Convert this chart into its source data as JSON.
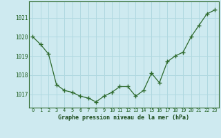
{
  "x": [
    0,
    1,
    2,
    3,
    4,
    5,
    6,
    7,
    8,
    9,
    10,
    11,
    12,
    13,
    14,
    15,
    16,
    17,
    18,
    19,
    20,
    21,
    22,
    23
  ],
  "y": [
    1020.0,
    1019.6,
    1019.1,
    1017.5,
    1017.2,
    1017.1,
    1016.9,
    1016.8,
    1016.6,
    1016.9,
    1017.1,
    1017.4,
    1017.4,
    1016.9,
    1017.2,
    1018.1,
    1017.6,
    1018.7,
    1019.0,
    1019.2,
    1020.0,
    1020.6,
    1021.2,
    1021.4
  ],
  "line_color": "#2d6a2d",
  "marker_color": "#2d6a2d",
  "bg_color": "#ceeaf0",
  "grid_color": "#b0d8e0",
  "xlabel": "Graphe pression niveau de la mer (hPa)",
  "xlabel_color": "#1a4a1a",
  "tick_label_color": "#1a5a1a",
  "ylim_min": 1016.3,
  "ylim_max": 1021.85,
  "yticks": [
    1017,
    1018,
    1019,
    1020,
    1021
  ],
  "xticks": [
    0,
    1,
    2,
    3,
    4,
    5,
    6,
    7,
    8,
    9,
    10,
    11,
    12,
    13,
    14,
    15,
    16,
    17,
    18,
    19,
    20,
    21,
    22,
    23
  ],
  "spine_color": "#2d6a2d"
}
